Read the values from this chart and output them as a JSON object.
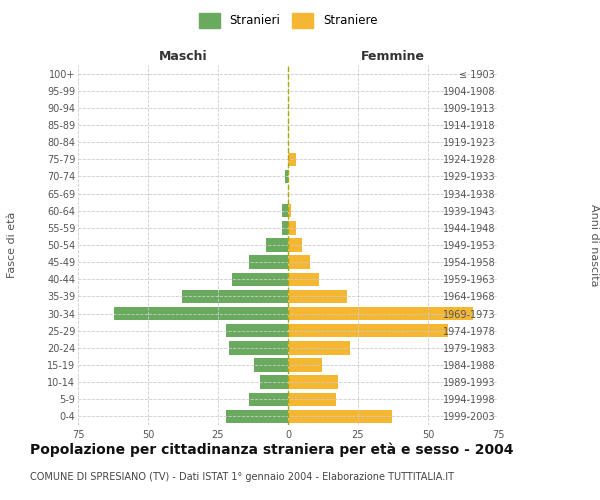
{
  "age_groups": [
    "0-4",
    "5-9",
    "10-14",
    "15-19",
    "20-24",
    "25-29",
    "30-34",
    "35-39",
    "40-44",
    "45-49",
    "50-54",
    "55-59",
    "60-64",
    "65-69",
    "70-74",
    "75-79",
    "80-84",
    "85-89",
    "90-94",
    "95-99",
    "100+"
  ],
  "birth_years": [
    "1999-2003",
    "1994-1998",
    "1989-1993",
    "1984-1988",
    "1979-1983",
    "1974-1978",
    "1969-1973",
    "1964-1968",
    "1959-1963",
    "1954-1958",
    "1949-1953",
    "1944-1948",
    "1939-1943",
    "1934-1938",
    "1929-1933",
    "1924-1928",
    "1919-1923",
    "1914-1918",
    "1909-1913",
    "1904-1908",
    "≤ 1903"
  ],
  "maschi": [
    22,
    14,
    10,
    12,
    21,
    22,
    62,
    38,
    20,
    14,
    8,
    2,
    2,
    0,
    1,
    0,
    0,
    0,
    0,
    0,
    0
  ],
  "femmine": [
    37,
    17,
    18,
    12,
    22,
    57,
    66,
    21,
    11,
    8,
    5,
    3,
    1,
    0,
    0,
    3,
    0,
    0,
    0,
    0,
    0
  ],
  "maschi_color": "#6aaa5e",
  "femmine_color": "#f5b731",
  "center_line_color": "#aaa800",
  "grid_color": "#cccccc",
  "background_color": "#ffffff",
  "title": "Popolazione per cittadinanza straniera per età e sesso - 2004",
  "subtitle": "COMUNE DI SPRESIANO (TV) - Dati ISTAT 1° gennaio 2004 - Elaborazione TUTTITALIA.IT",
  "xlabel_left": "Maschi",
  "xlabel_right": "Femmine",
  "ylabel_left": "Fasce di età",
  "ylabel_right": "Anni di nascita",
  "legend_maschi": "Stranieri",
  "legend_femmine": "Straniere",
  "xlim": 75,
  "title_fontsize": 10,
  "subtitle_fontsize": 7,
  "header_fontsize": 9,
  "axis_label_fontsize": 8,
  "tick_fontsize": 7
}
